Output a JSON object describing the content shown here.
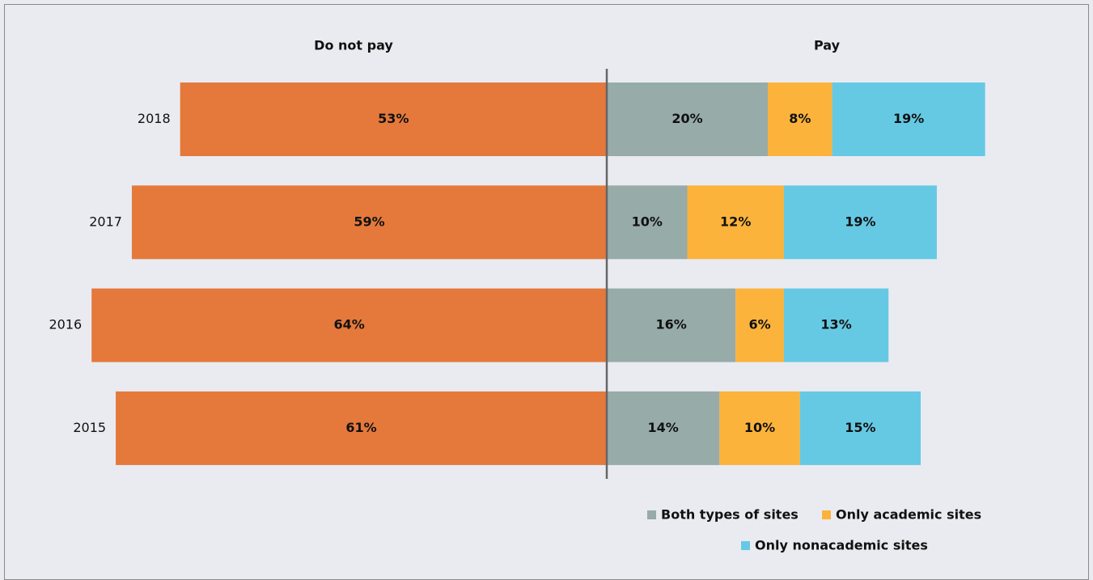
{
  "chart_data": {
    "type": "bar",
    "orientation": "horizontal",
    "stacked": true,
    "diverging": true,
    "right_label": "Pay",
    "categories": [
      "2018",
      "2017",
      "2016",
      "2015"
    ],
    "series": [
      {
        "name": "Do not pay",
        "color": "#e4793b",
        "values": [
          53,
          59,
          64,
          61
        ],
        "value_labels": [
          "53%",
          "59%",
          "64%",
          "61%"
        ]
      },
      {
        "name": "Both types of sites",
        "color": "#97aba8",
        "values": [
          20,
          10,
          16,
          14
        ],
        "value_labels": [
          "20%",
          "10%",
          "16%",
          "14%"
        ]
      },
      {
        "name": "Only academic sites",
        "color": "#fbb33b",
        "values": [
          8,
          12,
          6,
          10
        ],
        "value_labels": [
          "8%",
          "12%",
          "6%",
          "10%"
        ]
      },
      {
        "name": "Only nonacademic sites",
        "color": "#66c9e4",
        "values": [
          19,
          19,
          13,
          15
        ],
        "value_labels": [
          "19%",
          "19%",
          "13%",
          "15%"
        ]
      }
    ]
  }
}
